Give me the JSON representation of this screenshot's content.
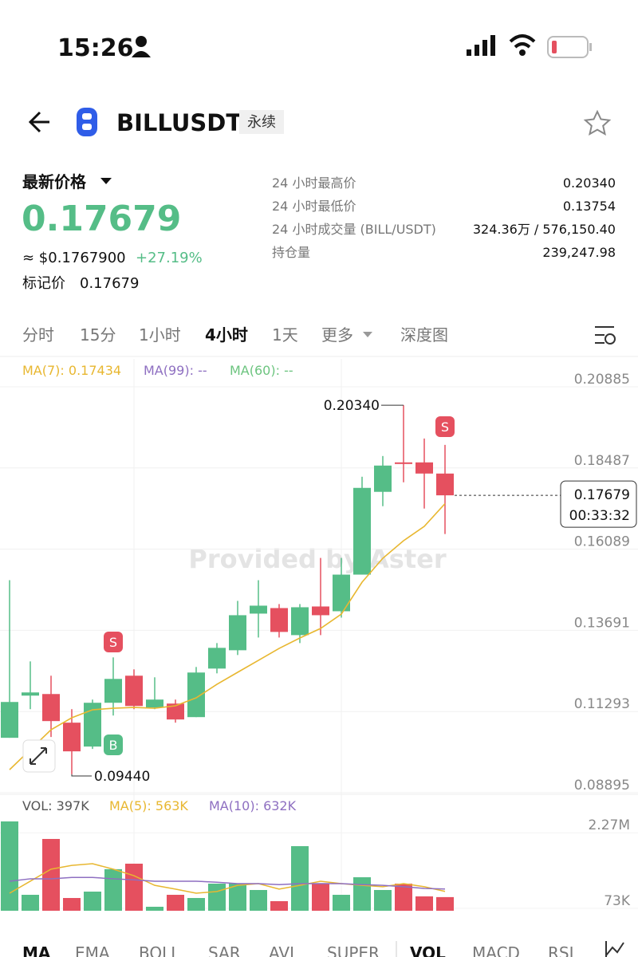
{
  "status_bar": {
    "time": "15:26"
  },
  "header": {
    "symbol": "BILLUSDT",
    "tag": "永续"
  },
  "price": {
    "label": "最新价格",
    "last": "0.17679",
    "usd": "≈ $0.1767900",
    "change": "+27.19%",
    "mark_label": "标记价",
    "mark": "0.17679"
  },
  "stats": [
    {
      "label": "24 小时最高价",
      "value": "0.20340"
    },
    {
      "label": "24 小时最低价",
      "value": "0.13754"
    },
    {
      "label": "24 小时成交量 (BILL/USDT)",
      "value": "324.36万 / 576,150.40"
    },
    {
      "label": "持仓量",
      "value": "239,247.98"
    }
  ],
  "tabs": [
    "分时",
    "15分",
    "1小时",
    "4小时",
    "1天",
    "更多",
    "深度图"
  ],
  "indicator_tabs": [
    "MA",
    "EMA",
    "BOLL",
    "SAR",
    "AVL",
    "SUPER",
    "VOL",
    "MACD",
    "RSI"
  ],
  "chart_data": [
    {
      "type": "candlestick",
      "watermark": "Provided by Aster",
      "up_color": "#55bd87",
      "down_color": "#e5505f",
      "legend": [
        {
          "text": "MA(7): 0.17434",
          "color": "#e8b730"
        },
        {
          "text": "MA(99): --",
          "color": "#8e6fc1"
        },
        {
          "text": "MA(60): --",
          "color": "#6cc47f"
        }
      ],
      "open": [
        0.10517,
        0.11763,
        0.1181,
        0.10964,
        0.10258,
        0.11552,
        0.12351,
        0.1141,
        0.11528,
        0.11128,
        0.12562,
        0.13103,
        0.14185,
        0.14349,
        0.1355,
        0.14396,
        0.14255,
        0.15337,
        0.17782,
        0.18652,
        0.18652,
        0.18322
      ],
      "high": [
        0.15172,
        0.12774,
        0.12351,
        0.11363,
        0.11646,
        0.12892,
        0.12539,
        0.12304,
        0.11646,
        0.12609,
        0.13315,
        0.14561,
        0.15172,
        0.14467,
        0.14467,
        0.1583,
        0.1583,
        0.18228,
        0.1884,
        0.2034,
        0.19357,
        0.19169
      ],
      "low": [
        0.10517,
        0.11363,
        0.10541,
        0.0944,
        0.10188,
        0.11175,
        0.11363,
        0.11363,
        0.10964,
        0.11128,
        0.12421,
        0.12962,
        0.13479,
        0.13479,
        0.13315,
        0.1355,
        0.14067,
        0.15337,
        0.17358,
        0.18064,
        0.17288,
        0.16536
      ],
      "close": [
        0.11575,
        0.11857,
        0.11011,
        0.10117,
        0.11552,
        0.12257,
        0.11457,
        0.11646,
        0.11058,
        0.12445,
        0.13174,
        0.14138,
        0.1442,
        0.13644,
        0.14373,
        0.14138,
        0.15337,
        0.17899,
        0.18558,
        0.18605,
        0.18322,
        0.17679
      ],
      "series": [
        {
          "name": "MA(7)",
          "color": "#e8b730",
          "values": [
            0.09575,
            0.10166,
            0.10755,
            0.11109,
            0.11344,
            0.11391,
            0.11415,
            0.11391,
            0.11462,
            0.11698,
            0.12098,
            0.12452,
            0.12805,
            0.13158,
            0.13465,
            0.13747,
            0.14171,
            0.15113,
            0.1582,
            0.16338,
            0.16763,
            0.17434
          ]
        }
      ],
      "ylim": [
        0.08895,
        0.20885
      ],
      "yticks": [
        0.20885,
        0.18487,
        0.16089,
        0.13691,
        0.11293,
        0.08895
      ],
      "annotations": [
        {
          "text": "0.20340"
        },
        {
          "text": "0.09440"
        }
      ],
      "markers": [
        {
          "label": "S",
          "color": "#e5505f"
        },
        {
          "label": "B",
          "color": "#55bd87"
        },
        {
          "label": "S",
          "color": "#e5505f"
        }
      ],
      "last_price": 0.17679,
      "countdown": "00:33:32"
    },
    {
      "type": "bar",
      "legend": [
        {
          "text": "VOL: 397K",
          "color": "#555555"
        },
        {
          "text": "MA(5): 563K",
          "color": "#e8b730"
        },
        {
          "text": "MA(10): 632K",
          "color": "#8e6fc1"
        }
      ],
      "values": [
        2600000,
        464000,
        2090000,
        371000,
        557000,
        1210000,
        1370000,
        116000,
        464000,
        371000,
        789000,
        789000,
        604000,
        279000,
        1880000,
        789000,
        464000,
        975000,
        604000,
        789000,
        418000,
        397000
      ],
      "series": [
        {
          "name": "MA(5)",
          "color": "#e8b730",
          "values": [
            510000,
            860000,
            1210000,
            1320000,
            1370000,
            1210000,
            1020000,
            740000,
            630000,
            510000,
            560000,
            740000,
            790000,
            630000,
            740000,
            860000,
            790000,
            740000,
            700000,
            790000,
            700000,
            563000
          ]
        },
        {
          "name": "MA(10)",
          "color": "#8e6fc1",
          "values": [
            860000,
            930000,
            930000,
            970000,
            970000,
            930000,
            900000,
            860000,
            860000,
            860000,
            830000,
            790000,
            790000,
            760000,
            790000,
            790000,
            790000,
            760000,
            740000,
            700000,
            650000,
            632000
          ]
        }
      ],
      "ylim": [
        0,
        2600000
      ],
      "yticks": [
        {
          "value": 2270000,
          "label": "2.27M"
        },
        {
          "value": 73000,
          "label": "73K"
        }
      ]
    }
  ]
}
